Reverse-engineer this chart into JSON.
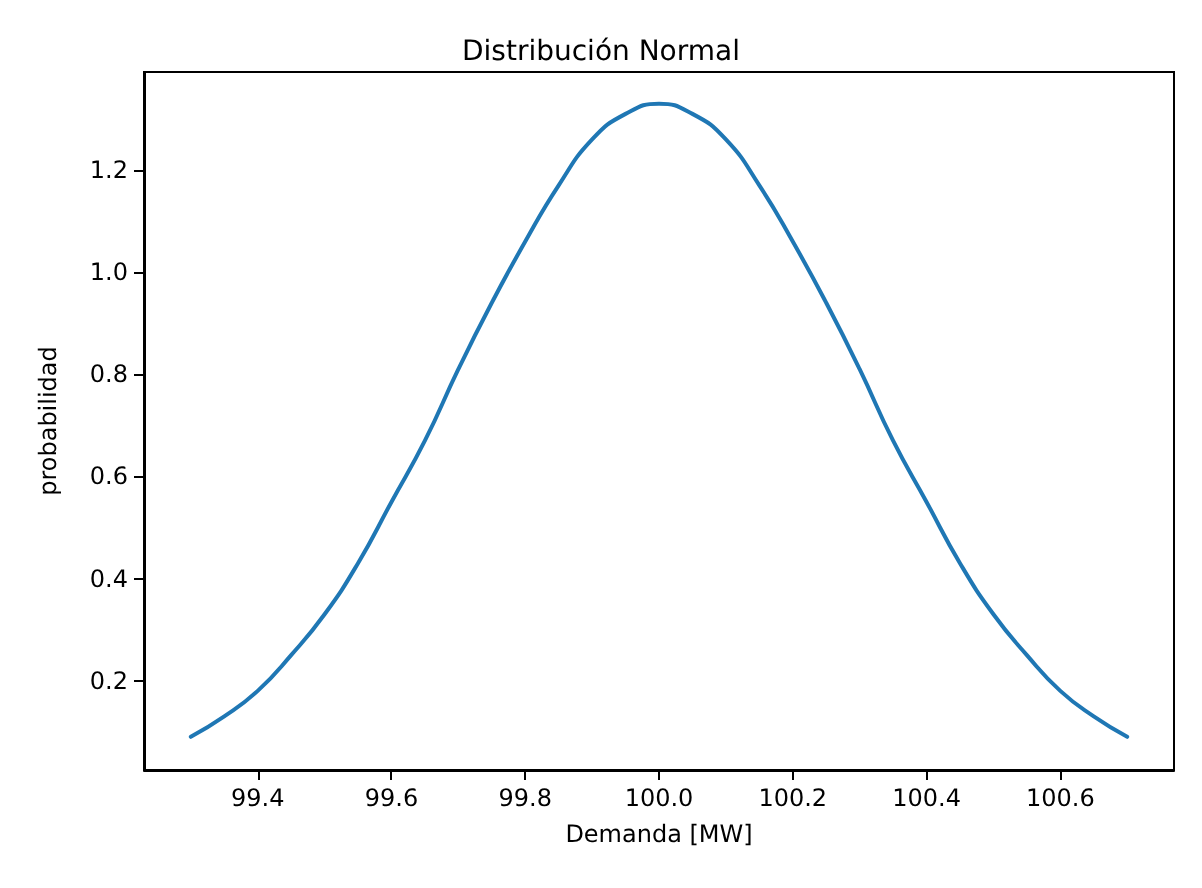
{
  "chart_data": {
    "type": "line",
    "title": "Distribución Normal",
    "xlabel": "Demanda [MW]",
    "ylabel": "probabilidad",
    "x": [
      99.3,
      99.35,
      99.4,
      99.45,
      99.5,
      99.55,
      99.6,
      99.65,
      99.7,
      99.75,
      99.8,
      99.85,
      99.9,
      99.95,
      100.0,
      100.05,
      100.1,
      100.15,
      100.2,
      100.25,
      100.3,
      100.35,
      100.4,
      100.45,
      100.5,
      100.55,
      100.6,
      100.65,
      100.7
    ],
    "series": [
      {
        "color": "#1f77b4",
        "values": [
          0.09,
          0.13,
          0.18,
          0.25,
          0.33,
          0.43,
          0.55,
          0.67,
          0.81,
          0.94,
          1.06,
          1.17,
          1.26,
          1.31,
          1.33,
          1.31,
          1.26,
          1.17,
          1.06,
          0.94,
          0.81,
          0.67,
          0.55,
          0.43,
          0.33,
          0.25,
          0.18,
          0.13,
          0.09
        ]
      }
    ],
    "xlim": [
      99.23,
      100.77
    ],
    "xticks": [
      99.4,
      99.6,
      99.8,
      {
        "value": 100,
        "label": "100.0"
      },
      100.2,
      100.4,
      100.6
    ],
    "ylim": [
      0.025,
      1.392
    ],
    "yticks": [
      0.2,
      0.4,
      0.6,
      0.8,
      {
        "value": 1,
        "label": "1.0"
      },
      1.2
    ],
    "grid": false,
    "marker": "none",
    "line_style": "solid"
  }
}
